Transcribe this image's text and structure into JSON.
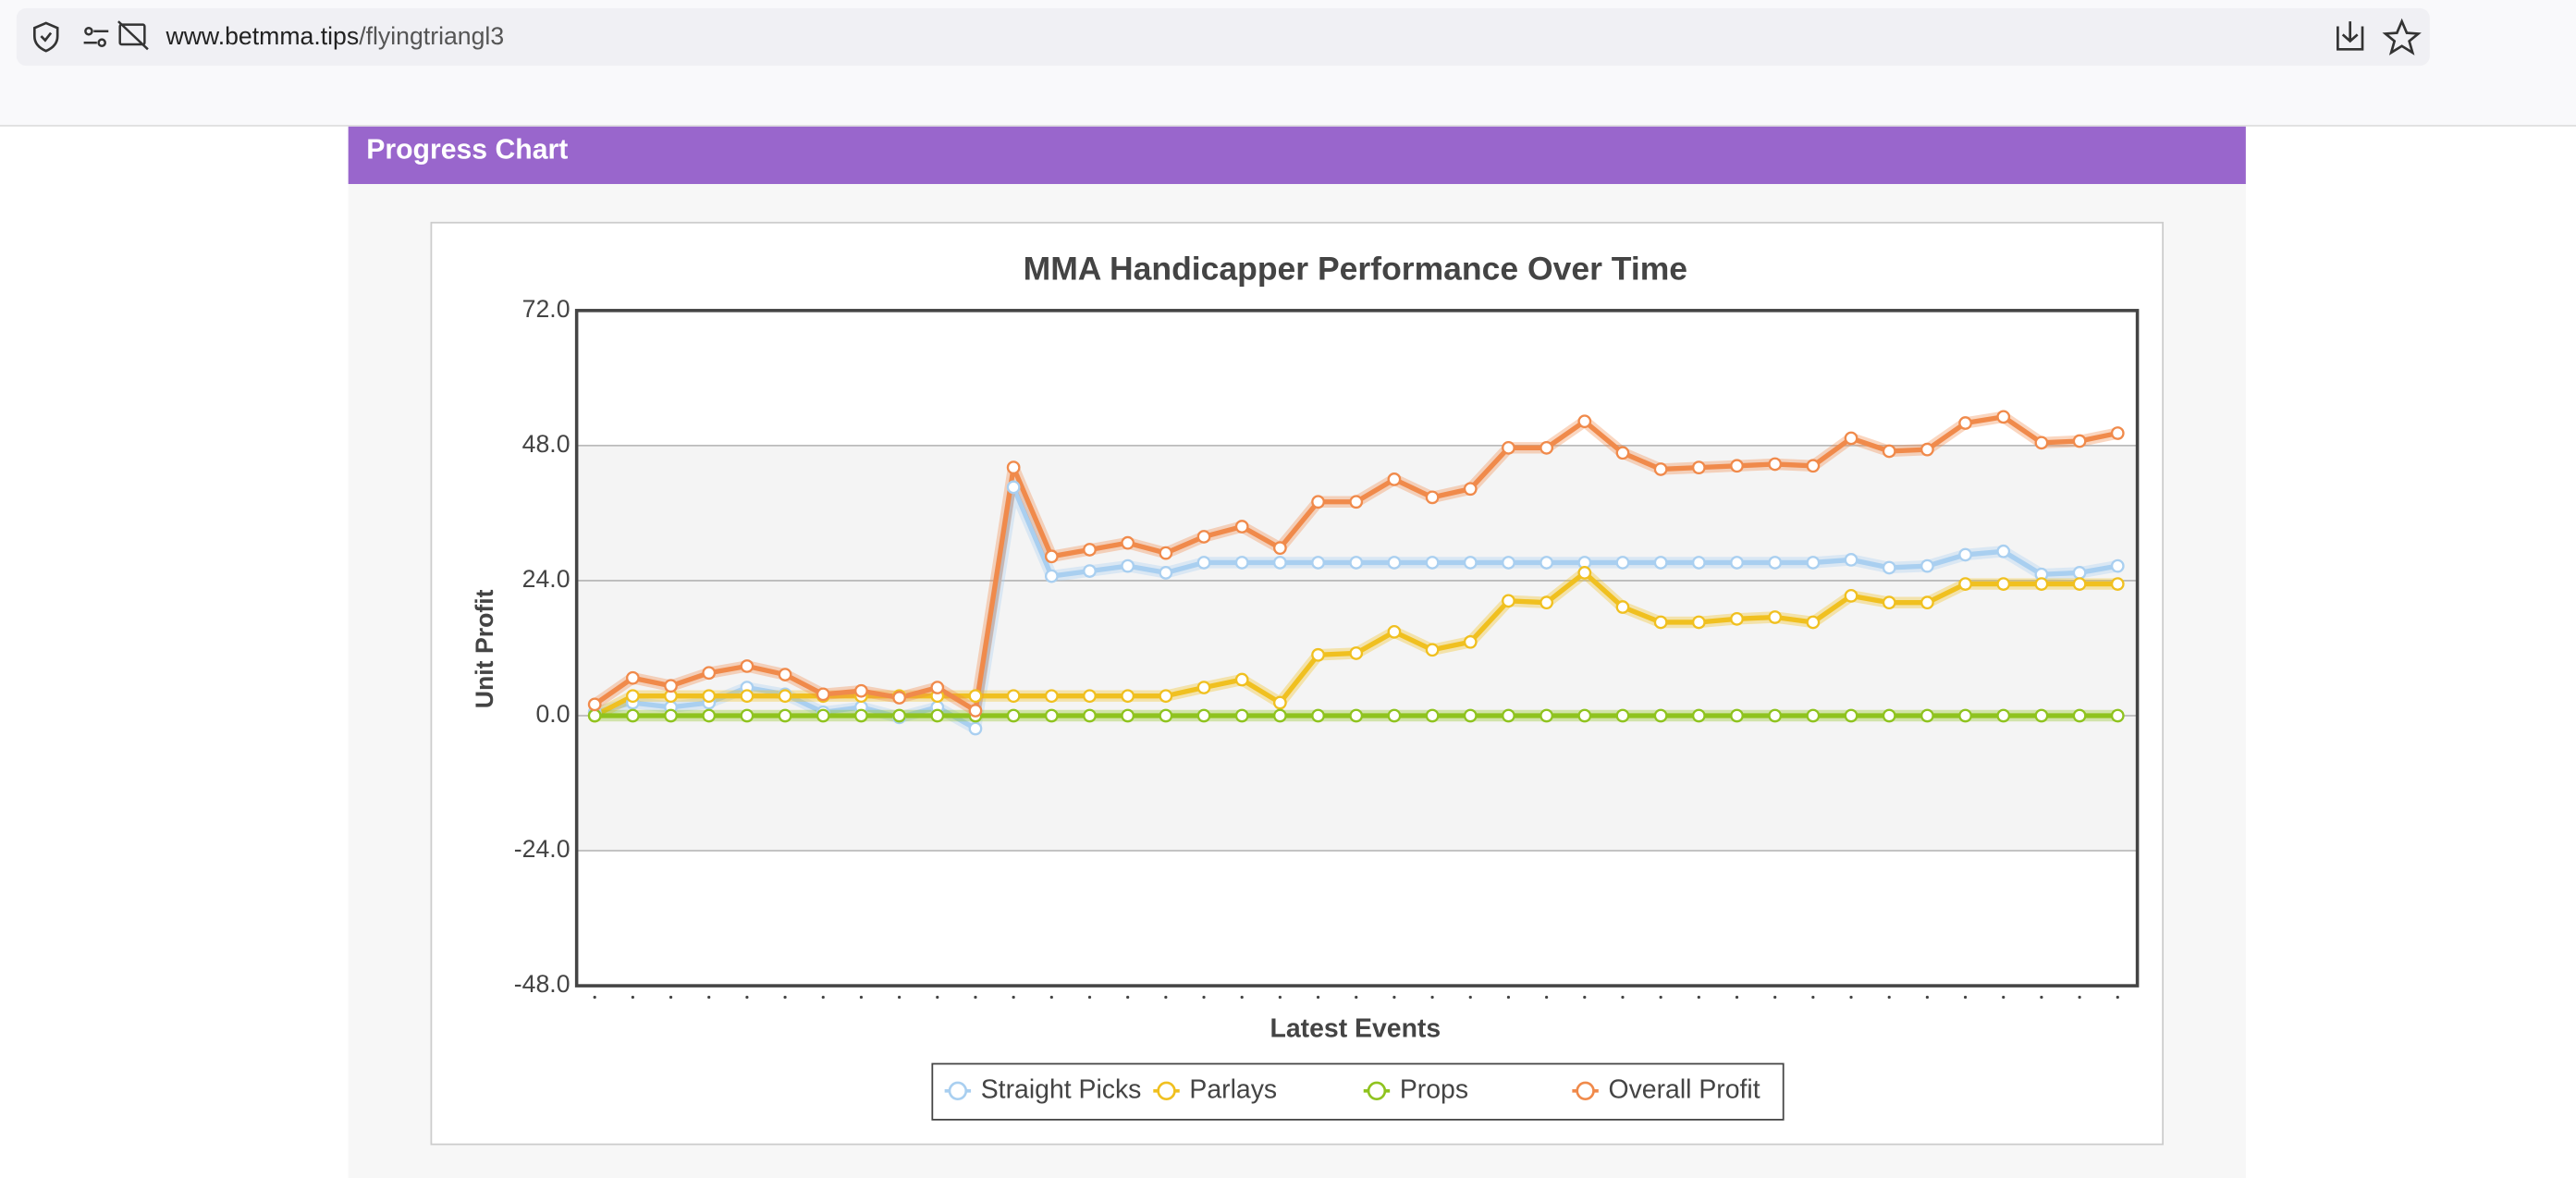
{
  "browser": {
    "url_host": "www.betmma.tips",
    "url_path": "/flyingtriangl3"
  },
  "panel": {
    "title": "Progress Chart"
  },
  "chart_data": {
    "type": "line",
    "title": "MMA Handicapper Performance Over Time",
    "x_label": "Latest Events",
    "y_label": "Unit Profit",
    "categories": [
      null,
      null,
      null,
      null,
      null,
      null,
      null,
      null,
      null,
      null,
      null,
      null,
      null,
      null,
      null,
      null,
      null,
      null,
      null,
      null,
      null,
      null,
      null,
      null,
      null,
      null,
      null,
      null,
      null,
      null,
      null,
      null,
      null,
      null,
      null,
      null,
      null,
      null,
      null,
      null,
      null
    ],
    "ylim": [
      -48,
      72
    ],
    "yticks": [
      {
        "value": 72,
        "label": "72.0"
      },
      {
        "value": 48,
        "label": "48.0"
      },
      {
        "value": 24,
        "label": "24.0"
      },
      {
        "value": 0,
        "label": "0.0"
      },
      {
        "value": -24,
        "label": "-24.0"
      },
      {
        "value": -48,
        "label": "-48.0"
      }
    ],
    "grid": true,
    "legend": "bottom",
    "series": [
      {
        "name": "Straight Picks",
        "color": "#a9cff0",
        "values": [
          0.6,
          2.3,
          1.5,
          2.3,
          5.0,
          3.8,
          0.6,
          1.5,
          -0.3,
          1.5,
          -2.3,
          40.6,
          24.8,
          25.7,
          26.6,
          25.4,
          27.2,
          27.2,
          27.2,
          27.2,
          27.2,
          27.2,
          27.2,
          27.2,
          27.2,
          27.2,
          27.2,
          27.2,
          27.2,
          27.2,
          27.2,
          27.2,
          27.2,
          27.7,
          26.3,
          26.6,
          28.6,
          29.2,
          25.1,
          25.4,
          26.6
        ]
      },
      {
        "name": "Parlays",
        "color": "#f0c020",
        "values": [
          0,
          3.5,
          3.5,
          3.5,
          3.5,
          3.5,
          3.5,
          3.5,
          3.5,
          3.5,
          3.5,
          3.5,
          3.5,
          3.5,
          3.5,
          3.5,
          5.0,
          6.4,
          2.3,
          10.8,
          11.1,
          14.9,
          11.7,
          13.1,
          20.4,
          20.1,
          25.4,
          19.3,
          16.6,
          16.6,
          17.2,
          17.5,
          16.6,
          21.3,
          20.1,
          20.1,
          23.4,
          23.4,
          23.4,
          23.4,
          23.4
        ]
      },
      {
        "name": "Props",
        "color": "#8fc31f",
        "values": [
          0,
          0,
          0,
          0,
          0,
          0,
          0,
          0,
          0,
          0,
          0,
          0,
          0,
          0,
          0,
          0,
          0,
          0,
          0,
          0,
          0,
          0,
          0,
          0,
          0,
          0,
          0,
          0,
          0,
          0,
          0,
          0,
          0,
          0,
          0,
          0,
          0,
          0,
          0,
          0,
          0
        ]
      },
      {
        "name": "Overall Profit",
        "color": "#f08a4b",
        "values": [
          2.0,
          6.7,
          5.3,
          7.6,
          8.8,
          7.3,
          3.8,
          4.4,
          3.2,
          5.0,
          0.9,
          44.1,
          28.3,
          29.5,
          30.7,
          28.9,
          31.8,
          33.6,
          29.8,
          38.0,
          38.0,
          42.0,
          38.8,
          40.3,
          47.6,
          47.6,
          52.3,
          46.7,
          43.8,
          44.1,
          44.4,
          44.7,
          44.4,
          49.3,
          47.0,
          47.3,
          52.0,
          53.1,
          48.5,
          48.8,
          50.2
        ]
      }
    ]
  }
}
